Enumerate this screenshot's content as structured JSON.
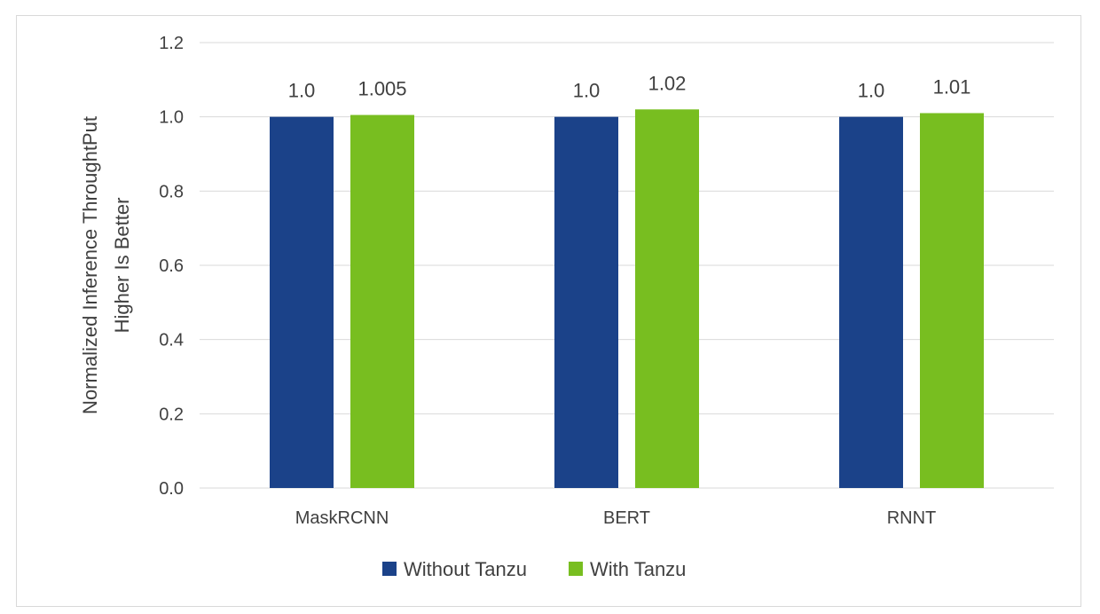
{
  "chart_data": {
    "type": "bar",
    "categories": [
      "MaskRCNN",
      "BERT",
      "RNNT"
    ],
    "series": [
      {
        "name": "Without Tanzu",
        "values": [
          1.0,
          1.0,
          1.0
        ],
        "labels": [
          "1.0",
          "1.0",
          "1.0"
        ],
        "color": "#1b4289"
      },
      {
        "name": "With Tanzu",
        "values": [
          1.005,
          1.02,
          1.01
        ],
        "labels": [
          "1.005",
          "1.02",
          "1.01"
        ],
        "color": "#78be20"
      }
    ],
    "ylabel_lines": [
      "Normalized Inference ThroughtPut",
      "Higher Is Better"
    ],
    "ylim": [
      0,
      1.2
    ],
    "yticks": [
      0.0,
      0.2,
      0.4,
      0.6,
      0.8,
      1.0,
      1.2
    ],
    "ytick_labels": [
      "0.0",
      "0.2",
      "0.4",
      "0.6",
      "0.8",
      "1.0",
      "1.2"
    ],
    "grid": true,
    "legend_position": "bottom",
    "gridline_color": "#d9d9d9"
  }
}
